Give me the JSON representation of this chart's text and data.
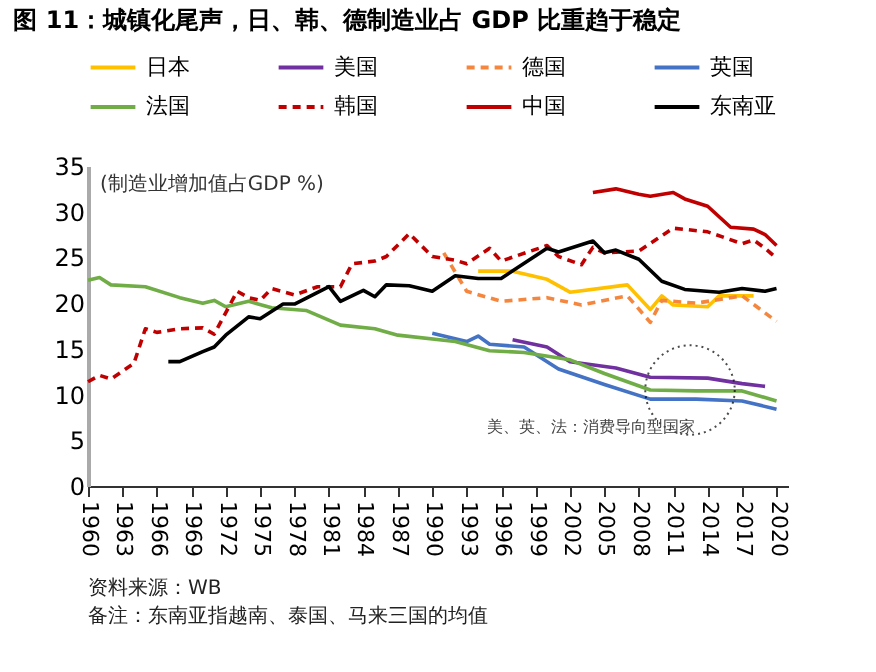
{
  "chart_data": {
    "type": "line",
    "title": "图 11：城镇化尾声，日、韩、德制造业占 GDP 比重趋于稳定",
    "ylabel": "(制造业增加值占GDP %)",
    "annotations": [
      "美、英、法：消费导向型国家",
      "资料来源：WB",
      "备注：东南亚指越南、泰国、马来三国的均值"
    ],
    "xlim": [
      1960,
      2021
    ],
    "xticks": [
      1960,
      1963,
      1966,
      1969,
      1972,
      1975,
      1978,
      1981,
      1984,
      1987,
      1990,
      1993,
      1996,
      1999,
      2002,
      2005,
      2008,
      2011,
      2014,
      2017,
      2020
    ],
    "ylim": [
      0,
      35
    ],
    "yticks": [
      0,
      5,
      10,
      15,
      20,
      25,
      30,
      35
    ],
    "grid": false,
    "legend": "top",
    "marker": "none",
    "series": [
      {
        "name": "日本",
        "color": "#ffc000",
        "line_style": "solid",
        "x": [
          1994,
          1997,
          2000,
          2002,
          2007,
          2009,
          2010,
          2011,
          2014,
          2015,
          2018
        ],
        "values": [
          23.5,
          23.5,
          22.6,
          21.2,
          22.0,
          19.3,
          20.8,
          19.8,
          19.6,
          20.8,
          20.8
        ]
      },
      {
        "name": "美国",
        "color": "#7030a0",
        "line_style": "solid",
        "x": [
          1997,
          2000,
          2002,
          2006,
          2009,
          2014,
          2017,
          2019
        ],
        "values": [
          16.0,
          15.2,
          13.6,
          12.9,
          11.9,
          11.8,
          11.2,
          10.9
        ]
      },
      {
        "name": "德国",
        "color": "#f4873d",
        "line_style": "dashed",
        "x": [
          1991,
          1993,
          1996,
          2000,
          2003,
          2007,
          2009,
          2010,
          2013,
          2017,
          2020
        ],
        "values": [
          25.5,
          21.3,
          20.2,
          20.6,
          19.8,
          20.8,
          17.9,
          20.3,
          20.0,
          20.8,
          18.0
        ]
      },
      {
        "name": "英国",
        "color": "#4472c4",
        "line_style": "solid",
        "x": [
          1990,
          1993,
          1994,
          1995,
          1998,
          2001,
          2005,
          2009,
          2013,
          2017,
          2020
        ],
        "values": [
          16.7,
          15.8,
          16.4,
          15.5,
          15.2,
          12.8,
          11.1,
          9.5,
          9.5,
          9.3,
          8.4
        ]
      },
      {
        "name": "法国",
        "color": "#70ad47",
        "line_style": "solid",
        "x": [
          1960,
          1961,
          1962,
          1965,
          1968,
          1970,
          1971,
          1972,
          1974,
          1976,
          1979,
          1982,
          1985,
          1987,
          1992,
          1995,
          1998,
          2002,
          2005,
          2009,
          2013,
          2017,
          2020
        ],
        "values": [
          22.5,
          22.8,
          22.0,
          21.8,
          20.6,
          20.0,
          20.3,
          19.6,
          20.2,
          19.5,
          19.2,
          17.6,
          17.2,
          16.5,
          15.8,
          14.8,
          14.6,
          13.8,
          12.3,
          10.5,
          10.4,
          10.4,
          9.3
        ]
      },
      {
        "name": "韩国",
        "color": "#c00000",
        "line_style": "dashed",
        "x": [
          1960,
          1961,
          1962,
          1964,
          1965,
          1966,
          1968,
          1970,
          1971,
          1973,
          1974,
          1975,
          1976,
          1978,
          1980,
          1982,
          1983,
          1985,
          1986,
          1988,
          1990,
          1992,
          1993,
          1995,
          1996,
          2000,
          2001,
          2003,
          2004,
          2005,
          2008,
          2011,
          2014,
          2017,
          2018,
          2019,
          2020
        ],
        "values": [
          11.4,
          12.1,
          11.7,
          13.4,
          17.2,
          16.8,
          17.2,
          17.3,
          16.6,
          21.3,
          20.6,
          20.3,
          21.6,
          20.9,
          21.8,
          21.8,
          24.3,
          24.6,
          25.1,
          27.6,
          25.1,
          24.7,
          24.3,
          26.0,
          24.6,
          26.3,
          25.1,
          24.2,
          26.1,
          25.5,
          25.7,
          28.2,
          27.8,
          26.5,
          26.9,
          26.0,
          24.9
        ]
      },
      {
        "name": "中国",
        "color": "#c00000",
        "line_style": "solid",
        "x": [
          2004,
          2006,
          2008,
          2009,
          2011,
          2012,
          2014,
          2016,
          2018,
          2019,
          2020
        ],
        "values": [
          32.1,
          32.5,
          31.9,
          31.7,
          32.1,
          31.4,
          30.6,
          28.3,
          28.1,
          27.5,
          26.3
        ]
      },
      {
        "name": "东南亚",
        "color": "#000000",
        "line_style": "solid",
        "x": [
          1967,
          1968,
          1970,
          1971,
          1972,
          1974,
          1975,
          1977,
          1978,
          1981,
          1982,
          1984,
          1985,
          1986,
          1988,
          1990,
          1992,
          1994,
          1996,
          2000,
          2001,
          2004,
          2005,
          2006,
          2008,
          2010,
          2012,
          2015,
          2017,
          2019,
          2020
        ],
        "values": [
          13.6,
          13.6,
          14.7,
          15.2,
          16.5,
          18.5,
          18.3,
          19.9,
          19.9,
          21.8,
          20.2,
          21.4,
          20.7,
          22.0,
          21.9,
          21.3,
          23.0,
          22.7,
          22.7,
          26.0,
          25.6,
          26.8,
          25.5,
          25.8,
          24.8,
          22.4,
          21.5,
          21.2,
          21.6,
          21.3,
          21.6
        ]
      }
    ]
  }
}
